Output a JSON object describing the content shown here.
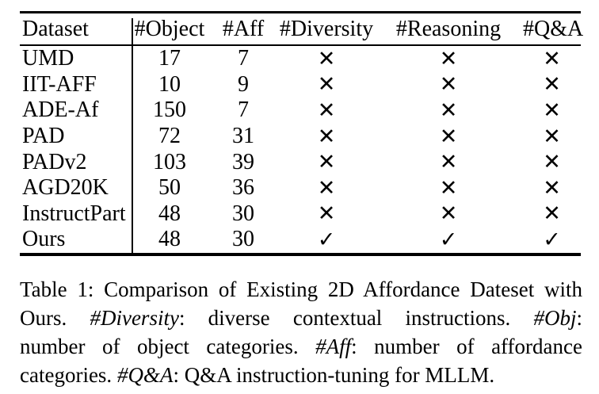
{
  "table": {
    "columns": [
      "Dataset",
      "#Object",
      "#Aff",
      "#Diversity",
      "#Reasoning",
      "#Q&A"
    ],
    "rows": [
      {
        "dataset": "UMD",
        "object": "17",
        "aff": "7",
        "marks": [
          "✕",
          "✕",
          "✕"
        ]
      },
      {
        "dataset": "IIT-AFF",
        "object": "10",
        "aff": "9",
        "marks": [
          "✕",
          "✕",
          "✕"
        ]
      },
      {
        "dataset": "ADE-Af",
        "object": "150",
        "aff": "7",
        "marks": [
          "✕",
          "✕",
          "✕"
        ]
      },
      {
        "dataset": "PAD",
        "object": "72",
        "aff": "31",
        "marks": [
          "✕",
          "✕",
          "✕"
        ]
      },
      {
        "dataset": "PADv2",
        "object": "103",
        "aff": "39",
        "marks": [
          "✕",
          "✕",
          "✕"
        ]
      },
      {
        "dataset": "AGD20K",
        "object": "50",
        "aff": "36",
        "marks": [
          "✕",
          "✕",
          "✕"
        ]
      },
      {
        "dataset": "InstructPart",
        "object": "48",
        "aff": "30",
        "marks": [
          "✕",
          "✕",
          "✕"
        ]
      },
      {
        "dataset": "Ours",
        "object": "48",
        "aff": "30",
        "marks": [
          "✓",
          "✓",
          "✓"
        ]
      }
    ],
    "cross_glyph": "✕",
    "check_glyph": "✓",
    "text_color": "#000000",
    "background_color": "#ffffff"
  },
  "caption": {
    "lines": [
      [
        {
          "text": "Table 1: Comparison of Existing 2D Affordance Dateset with",
          "italic": false
        }
      ],
      [
        {
          "text": "Ours. ",
          "italic": false
        },
        {
          "text": "#Diversity",
          "italic": true
        },
        {
          "text": ": diverse contextual instructions. ",
          "italic": false
        },
        {
          "text": "#Obj",
          "italic": true
        },
        {
          "text": ":",
          "italic": false
        }
      ],
      [
        {
          "text": "number of object categories. ",
          "italic": false
        },
        {
          "text": "#Aff",
          "italic": true
        },
        {
          "text": ": number of affordance",
          "italic": false
        }
      ],
      [
        {
          "text": "categories. ",
          "italic": false
        },
        {
          "text": "#Q&A",
          "italic": true
        },
        {
          "text": ": Q&A instruction-tuning for MLLM.",
          "italic": false
        }
      ]
    ]
  }
}
